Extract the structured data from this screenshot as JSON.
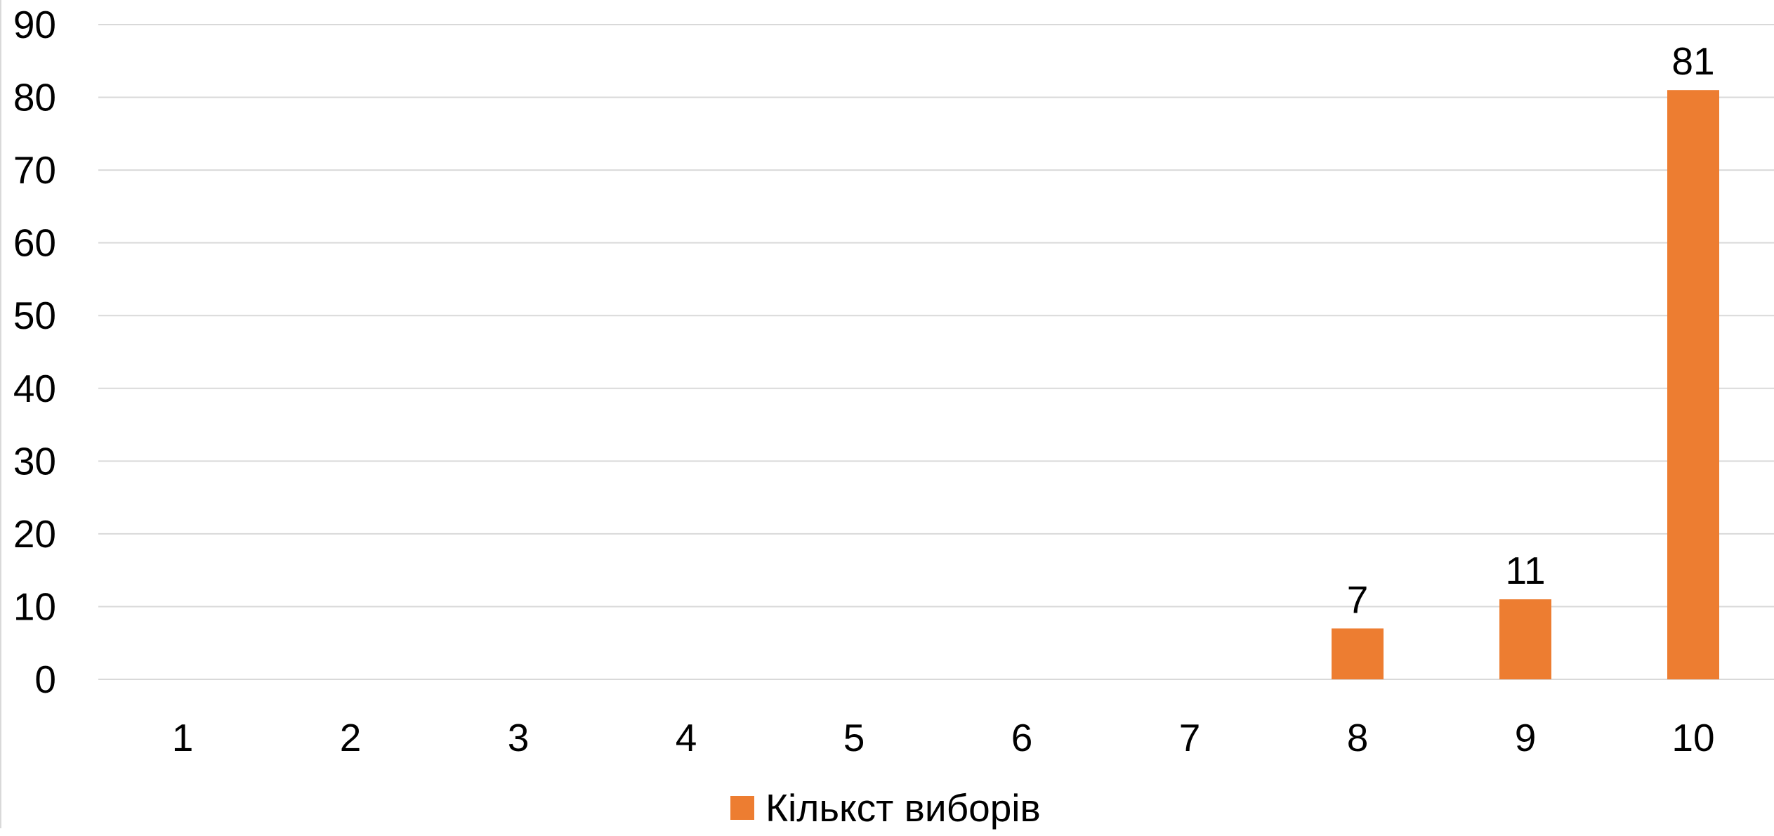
{
  "chart_data": {
    "type": "bar",
    "categories": [
      "1",
      "2",
      "3",
      "4",
      "5",
      "6",
      "7",
      "8",
      "9",
      "10"
    ],
    "series": [
      {
        "name": "Кількст виборів",
        "values": [
          0,
          0,
          0,
          0,
          0,
          0,
          0,
          7,
          11,
          81
        ],
        "color": "#ED7D31"
      }
    ],
    "data_labels": [
      "",
      "",
      "",
      "",
      "",
      "",
      "",
      "7",
      "11",
      "81"
    ],
    "ylim": [
      0,
      90
    ],
    "yticks": [
      "0",
      "10",
      "20",
      "30",
      "40",
      "50",
      "60",
      "70",
      "80",
      "90"
    ],
    "grid": true,
    "legend_position": "bottom",
    "gridline_color": "#D9D9D9"
  }
}
